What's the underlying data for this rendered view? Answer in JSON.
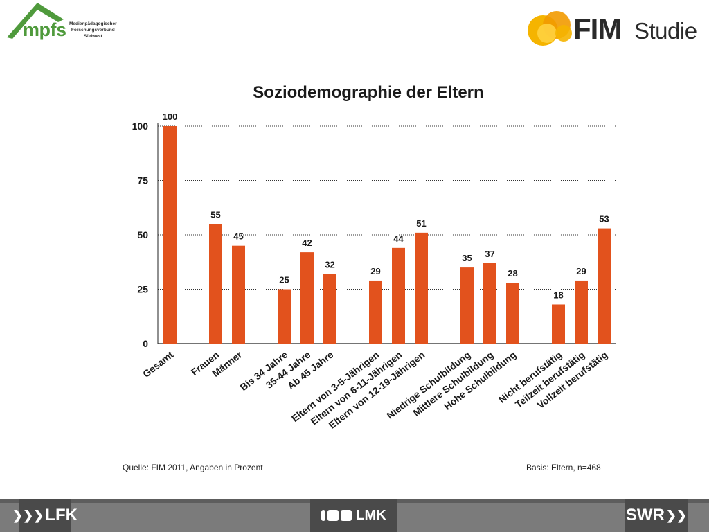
{
  "header": {
    "left_logo": {
      "word": "mpfs",
      "sub_lines": [
        "Medienpädagogischer",
        "Forschungsverbund",
        "Südwest"
      ]
    },
    "right_logo": {
      "word": "FIM",
      "suffix": "Studie",
      "icon": "sun-circles-icon"
    }
  },
  "chart_data": {
    "type": "bar",
    "title": "Soziodemographie der Eltern",
    "xlabel": "",
    "ylabel": "",
    "ylim": [
      0,
      100
    ],
    "yticks": [
      0,
      25,
      50,
      75,
      100
    ],
    "grid": "horizontal-dotted",
    "bar_color": "#e2521d",
    "groups": [
      {
        "categories": [
          "Gesamt"
        ],
        "values": [
          100
        ]
      },
      {
        "categories": [
          "Frauen",
          "Männer"
        ],
        "values": [
          55,
          45
        ]
      },
      {
        "categories": [
          "Bis 34 Jahre",
          "35-44 Jahre",
          "Ab 45 Jahre"
        ],
        "values": [
          25,
          42,
          32
        ]
      },
      {
        "categories": [
          "Eltern von 3-5-Jährigen",
          "Eltern von 6-11-Jährigen",
          "Eltern von 12-19-Jährigen"
        ],
        "values": [
          29,
          44,
          51
        ]
      },
      {
        "categories": [
          "Niedrige Schulbildung",
          "Mittlere Schulbildung",
          "Hohe Schulbildung"
        ],
        "values": [
          35,
          37,
          28
        ]
      },
      {
        "categories": [
          "Nicht berufstätig",
          "Teilzeit berufstätig",
          "Vollzeit berufstätig"
        ],
        "values": [
          18,
          29,
          53
        ]
      }
    ]
  },
  "footnotes": {
    "source": "Quelle: FIM 2011, Angaben in Prozent",
    "basis": "Basis: Eltern, n=468"
  },
  "footer": {
    "left": "LFK",
    "center": "LMK",
    "right": "SWR"
  }
}
